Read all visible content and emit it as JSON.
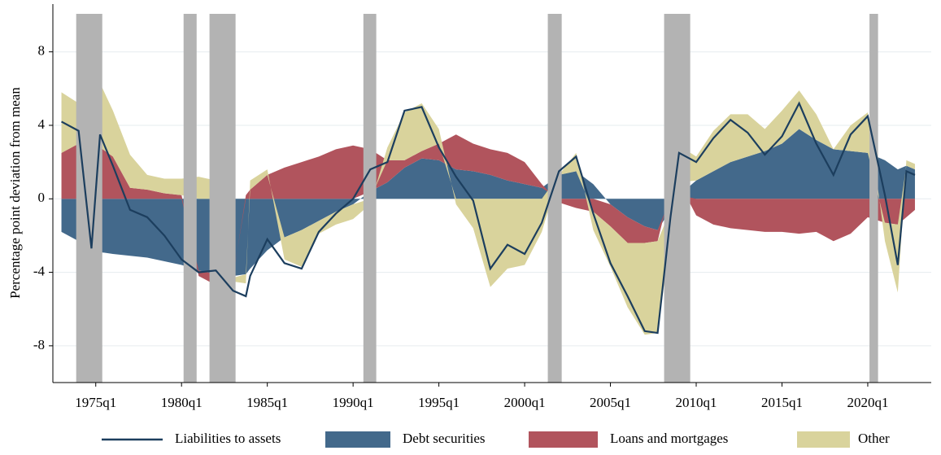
{
  "chart_data": {
    "type": "area",
    "y_label": "Percentage point deviation from mean",
    "x": [
      1973,
      1974,
      1974.75,
      1975.25,
      1976,
      1977,
      1978,
      1979,
      1980,
      1981,
      1982,
      1983,
      1983.75,
      1984,
      1985,
      1986,
      1987,
      1988,
      1989,
      1990,
      1991,
      1992,
      1993,
      1994,
      1995,
      1996,
      1997,
      1998,
      1999,
      2000,
      2001,
      2002,
      2003,
      2004,
      2005,
      2006,
      2007,
      2007.75,
      2008.5,
      2009,
      2010,
      2011,
      2012,
      2013,
      2014,
      2015,
      2016,
      2017,
      2018,
      2019,
      2020,
      2021,
      2021.75,
      2022.25,
      2022.75
    ],
    "series": [
      {
        "name": "Debt securities",
        "color": "#43698b",
        "values": [
          -1.8,
          -2.3,
          -2.8,
          -2.9,
          -3.0,
          -3.1,
          -3.2,
          -3.4,
          -3.6,
          -3.9,
          -4.1,
          -4.2,
          -4.1,
          -3.8,
          -2.8,
          -2.1,
          -1.7,
          -1.2,
          -0.7,
          -0.3,
          0.4,
          0.9,
          1.7,
          2.2,
          2.1,
          1.6,
          1.5,
          1.3,
          1.0,
          0.8,
          0.6,
          1.3,
          1.5,
          0.8,
          -0.3,
          -1.0,
          -1.5,
          -1.7,
          -0.6,
          0.2,
          1.0,
          1.5,
          2.0,
          2.3,
          2.6,
          3.0,
          3.8,
          3.2,
          2.7,
          2.6,
          2.5,
          2.1,
          1.6,
          1.8,
          1.6
        ]
      },
      {
        "name": "Loans and mortgages",
        "color": "#b1545d",
        "values": [
          2.5,
          3.0,
          1.5,
          2.8,
          2.3,
          0.6,
          0.5,
          0.3,
          0.2,
          -0.3,
          -0.6,
          -0.1,
          0.2,
          0.5,
          1.3,
          1.7,
          2.0,
          2.3,
          2.7,
          2.9,
          2.3,
          1.2,
          0.4,
          0.4,
          0.9,
          1.9,
          1.5,
          1.4,
          1.5,
          1.2,
          0.2,
          -0.2,
          -0.5,
          -0.7,
          -1.2,
          -1.4,
          -0.9,
          -0.6,
          0.5,
          0.7,
          -0.9,
          -1.4,
          -1.6,
          -1.7,
          -1.8,
          -1.8,
          -1.9,
          -1.8,
          -2.3,
          -1.9,
          -1.0,
          -1.3,
          -1.4,
          -1.0,
          -0.6
        ]
      },
      {
        "name": "Other",
        "color": "#d9d39c",
        "values": [
          3.3,
          2.2,
          -1.5,
          3.5,
          2.5,
          1.8,
          0.8,
          0.8,
          0.9,
          1.2,
          1.0,
          -0.2,
          -0.5,
          0.5,
          0.3,
          -1.2,
          -2.0,
          -0.7,
          -0.7,
          -0.8,
          -0.3,
          0.7,
          2.6,
          2.6,
          0.8,
          -0.3,
          -1.6,
          -4.8,
          -3.8,
          -3.6,
          -1.8,
          0.0,
          1.0,
          -1.0,
          -2.2,
          -3.5,
          -5.0,
          -5.0,
          -1.5,
          2.0,
          1.3,
          2.2,
          2.6,
          2.3,
          1.2,
          1.8,
          2.1,
          1.4,
          0.0,
          1.4,
          2.2,
          -1.0,
          -3.7,
          0.3,
          0.3
        ]
      }
    ],
    "line": {
      "name": "Liabilities to assets",
      "color": "#1c3e5e",
      "values": [
        4.2,
        3.7,
        -2.7,
        3.5,
        1.8,
        -0.6,
        -1.0,
        -2.0,
        -3.3,
        -4.0,
        -3.9,
        -5.0,
        -5.3,
        -4.2,
        -2.2,
        -3.5,
        -3.8,
        -1.8,
        -0.8,
        0.0,
        1.6,
        2.0,
        4.8,
        5.0,
        2.8,
        1.2,
        -0.1,
        -3.8,
        -2.5,
        -3.0,
        -1.3,
        1.5,
        2.3,
        -0.8,
        -3.5,
        -5.3,
        -7.2,
        -7.3,
        -1.0,
        2.5,
        2.0,
        3.3,
        4.3,
        3.6,
        2.4,
        3.4,
        5.2,
        3.0,
        1.3,
        3.5,
        4.5,
        0.2,
        -3.6,
        1.5,
        1.3
      ]
    },
    "recessions": [
      [
        1973.86,
        1975.38
      ],
      [
        1980.12,
        1980.88
      ],
      [
        1981.63,
        1983.15
      ],
      [
        1990.6,
        1991.35
      ],
      [
        2001.35,
        2002.16
      ],
      [
        2008.13,
        2009.65
      ],
      [
        2020.1,
        2020.6
      ]
    ],
    "recession_color": "#b3b3b3",
    "xlim": [
      1972.5,
      2023.7
    ],
    "xticks": [
      {
        "value": 1975,
        "label": "1975q1"
      },
      {
        "value": 1980,
        "label": "1980q1"
      },
      {
        "value": 1985,
        "label": "1985q1"
      },
      {
        "value": 1990,
        "label": "1990q1"
      },
      {
        "value": 1995,
        "label": "1995q1"
      },
      {
        "value": 2000,
        "label": "2000q1"
      },
      {
        "value": 2005,
        "label": "2005q1"
      },
      {
        "value": 2010,
        "label": "2010q1"
      },
      {
        "value": 2015,
        "label": "2015q1"
      },
      {
        "value": 2020,
        "label": "2020q1"
      }
    ],
    "ylim": [
      -10,
      10.6
    ],
    "yticks": [
      -8,
      -4,
      0,
      4,
      8
    ],
    "grid": true
  }
}
